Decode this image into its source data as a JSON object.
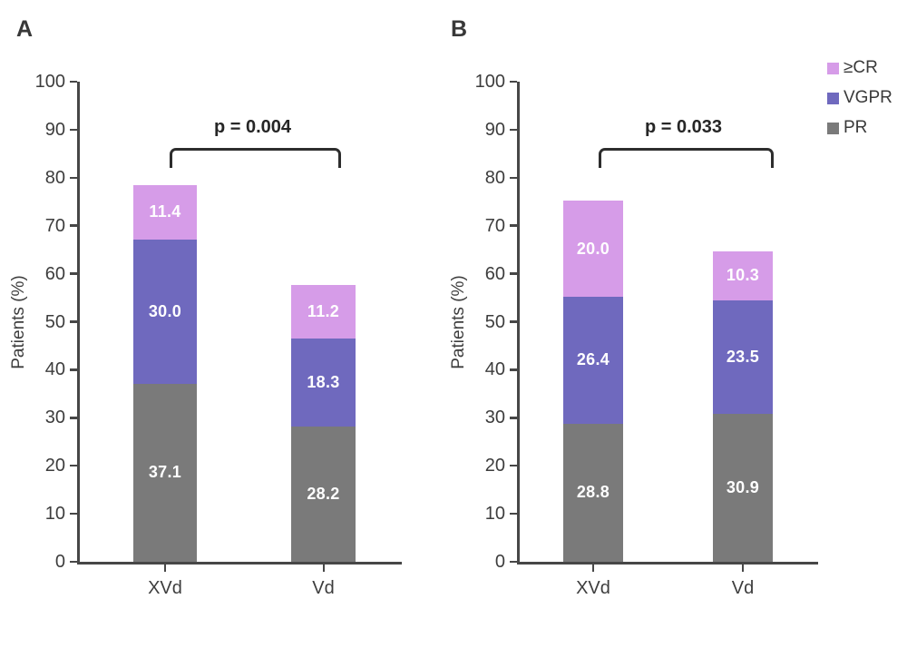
{
  "chart_data": [
    {
      "type": "bar",
      "stacked": true,
      "panel_label": "A",
      "title": "",
      "xlabel": "",
      "ylabel": "Patients (%)",
      "ylim": [
        0,
        100
      ],
      "ytick_interval": 10,
      "grid": false,
      "categories": [
        "XVd",
        "Vd"
      ],
      "series": [
        {
          "name": "PR",
          "color": "#7a7a7a",
          "values": [
            37.1,
            28.2
          ]
        },
        {
          "name": "VGPR",
          "color": "#6f69be",
          "values": [
            30.0,
            18.3
          ]
        },
        {
          "name": "≥CR",
          "color": "#d69ce8",
          "values": [
            11.4,
            11.2
          ]
        }
      ],
      "totals": [
        78.5,
        57.7
      ],
      "annotation": "p = 0.004"
    },
    {
      "type": "bar",
      "stacked": true,
      "panel_label": "B",
      "title": "",
      "xlabel": "",
      "ylabel": "Patients (%)",
      "ylim": [
        0,
        100
      ],
      "ytick_interval": 10,
      "grid": false,
      "categories": [
        "XVd",
        "Vd"
      ],
      "series": [
        {
          "name": "PR",
          "color": "#7a7a7a",
          "values": [
            28.8,
            30.9
          ]
        },
        {
          "name": "VGPR",
          "color": "#6f69be",
          "values": [
            26.4,
            23.5
          ]
        },
        {
          "name": "≥CR",
          "color": "#d69ce8",
          "values": [
            20.0,
            10.3
          ]
        }
      ],
      "totals": [
        75.2,
        64.7
      ],
      "annotation": "p = 0.033"
    }
  ],
  "legend": {
    "position": "top-right",
    "entries": [
      {
        "label": "≥CR",
        "color": "#d69ce8"
      },
      {
        "label": "VGPR",
        "color": "#6f69be"
      },
      {
        "label": "PR",
        "color": "#7a7a7a"
      }
    ]
  }
}
